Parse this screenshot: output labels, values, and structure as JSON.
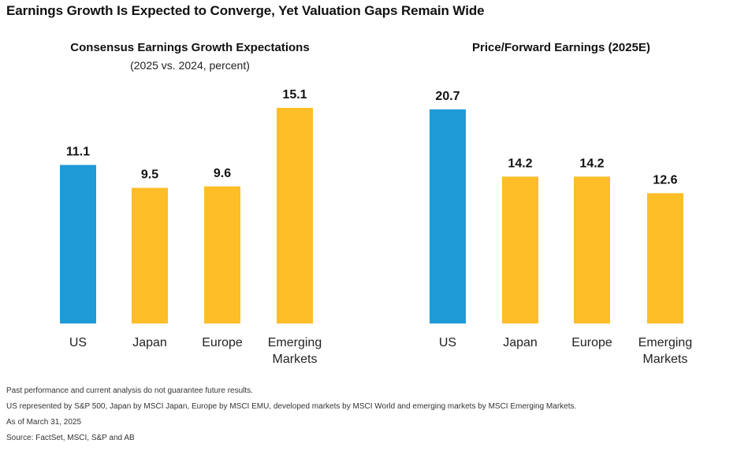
{
  "page": {
    "title": "Earnings Growth Is Expected to Converge, Yet Valuation Gaps Remain Wide"
  },
  "colors": {
    "us": "#1f9bd7",
    "others": "#fdbe28",
    "baseline": "#cccccc"
  },
  "chart_data": [
    {
      "type": "bar",
      "title": "Consensus Earnings Growth Expectations",
      "subtitle": "(2025 vs. 2024, percent)",
      "categories": [
        [
          "US"
        ],
        [
          "Japan"
        ],
        [
          "Europe"
        ],
        [
          "Emerging",
          "Markets"
        ]
      ],
      "values": [
        11.1,
        9.5,
        9.6,
        15.1
      ],
      "value_labels": [
        "11.1",
        "9.5",
        "9.6",
        "15.1"
      ],
      "ylim": [
        0,
        15.1
      ]
    },
    {
      "type": "bar",
      "title": "Price/Forward Earnings (2025E)",
      "subtitle": "",
      "categories": [
        [
          "US"
        ],
        [
          "Japan"
        ],
        [
          "Europe"
        ],
        [
          "Emerging",
          "Markets"
        ]
      ],
      "values": [
        20.7,
        14.2,
        14.2,
        12.6
      ],
      "value_labels": [
        "20.7",
        "14.2",
        "14.2",
        "12.6"
      ],
      "ylim": [
        0,
        20.7
      ]
    }
  ],
  "footnotes": [
    "Past performance and current analysis do not guarantee future results.",
    "US represented by S&P 500, Japan by MSCI Japan, Europe by MSCI EMU, developed markets by MSCI World and emerging markets by MSCI Emerging Markets.",
    "As of March 31, 2025",
    "Source: FactSet, MSCI, S&P and AB"
  ]
}
